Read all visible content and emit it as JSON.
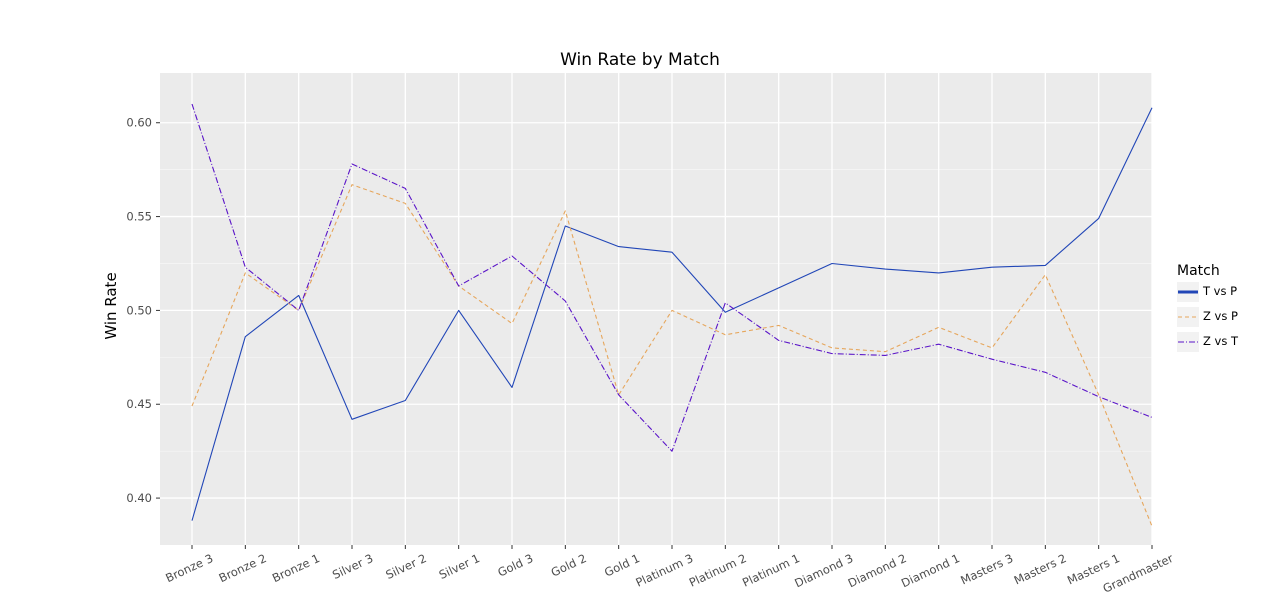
{
  "chart_data": {
    "type": "line",
    "title": "Win Rate by Match",
    "xlabel": "",
    "ylabel": "Win Rate",
    "categories": [
      "Bronze 3",
      "Bronze 2",
      "Bronze 1",
      "Silver 3",
      "Silver 2",
      "Silver 1",
      "Gold 3",
      "Gold 2",
      "Gold 1",
      "Platinum 3",
      "Platinum 2",
      "Platinum 1",
      "Diamond 3",
      "Diamond 2",
      "Diamond 1",
      "Masters 3",
      "Masters 2",
      "Masters 1",
      "Grandmaster"
    ],
    "ylim": [
      0.375,
      0.6265
    ],
    "yticks": [
      0.4,
      0.45,
      0.5,
      0.55,
      0.6
    ],
    "ytick_labels": [
      "0.40",
      "0.45",
      "0.50",
      "0.55",
      "0.60"
    ],
    "grid": true,
    "legend": {
      "title": "Match",
      "position": "right"
    },
    "series": [
      {
        "name": "T vs P",
        "color": "#2146b7",
        "dash": "solid",
        "values": [
          0.388,
          0.486,
          0.508,
          0.442,
          0.452,
          0.5,
          0.459,
          0.545,
          0.534,
          0.531,
          0.499,
          0.512,
          0.525,
          0.522,
          0.52,
          0.523,
          0.524,
          0.549,
          0.608
        ]
      },
      {
        "name": "Z vs P",
        "color": "#e6a65c",
        "dash": "dashed",
        "values": [
          0.449,
          0.52,
          0.5,
          0.567,
          0.557,
          0.513,
          0.493,
          0.553,
          0.455,
          0.5,
          0.487,
          0.492,
          0.48,
          0.478,
          0.491,
          0.48,
          0.519,
          0.455,
          0.385
        ]
      },
      {
        "name": "Z vs T",
        "color": "#5a14c8",
        "dash": "dashdot",
        "values": [
          0.61,
          0.523,
          0.5,
          0.578,
          0.565,
          0.513,
          0.529,
          0.505,
          0.455,
          0.425,
          0.504,
          0.484,
          0.477,
          0.476,
          0.482,
          0.474,
          0.467,
          0.454,
          0.443
        ]
      }
    ]
  }
}
